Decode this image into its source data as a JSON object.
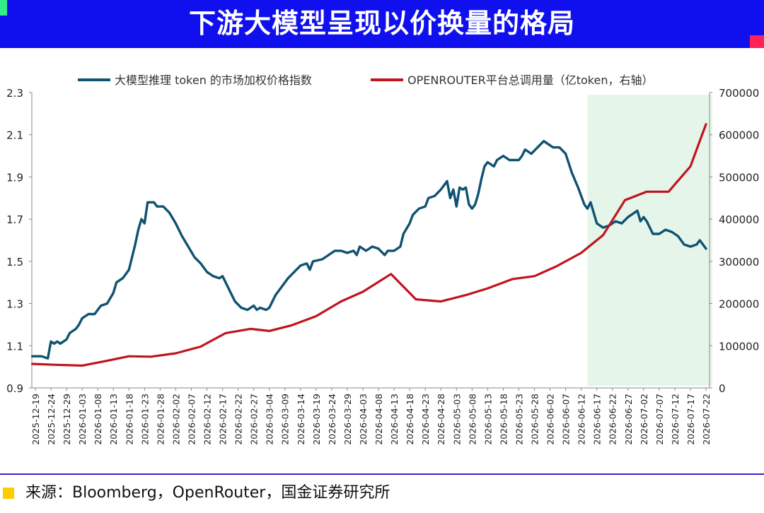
{
  "page": {
    "title": "下游大模型呈现以价换量的格局",
    "source": "来源：Bloomberg，OpenRouter，国金证券研究所",
    "colors": {
      "banner": "#1010ee",
      "accent_green": "#33ee88",
      "accent_red": "#ff2255",
      "source_marker": "#ffcc00"
    }
  },
  "chart_data": {
    "type": "line",
    "x_ticks": [
      "2025-12-19",
      "2025-12-24",
      "2025-12-29",
      "2026-01-03",
      "2026-01-08",
      "2026-01-13",
      "2026-01-18",
      "2026-01-23",
      "2026-01-28",
      "2026-02-02",
      "2026-02-07",
      "2026-02-12",
      "2026-02-17",
      "2026-02-22",
      "2026-02-27",
      "2026-03-04",
      "2026-03-09",
      "2026-03-14",
      "2026-03-19",
      "2026-03-24",
      "2026-03-29",
      "2026-04-03",
      "2026-04-08",
      "2026-04-13",
      "2026-04-18",
      "2026-04-23",
      "2026-04-28",
      "2026-05-03",
      "2026-05-08",
      "2026-05-13",
      "2026-05-18",
      "2026-05-23",
      "2026-05-28",
      "2026-06-02",
      "2026-06-07",
      "2026-06-12",
      "2026-06-17",
      "2026-06-22",
      "2026-06-27",
      "2026-07-02",
      "2026-07-07",
      "2026-07-12",
      "2026-07-17",
      "2026-07-22"
    ],
    "y_left": {
      "min": 0.9,
      "max": 2.3,
      "ticks": [
        "0.9",
        "1.1",
        "1.3",
        "1.5",
        "1.7",
        "1.9",
        "2.1",
        "2.3"
      ]
    },
    "y_right": {
      "min": 0,
      "max": 700000,
      "ticks": [
        "0",
        "100000",
        "200000",
        "300000",
        "400000",
        "500000",
        "600000",
        "700000"
      ]
    },
    "highlight": {
      "from": "2026-06-14",
      "to": "2026-07-24",
      "color": "#e5f5ea"
    },
    "series": [
      {
        "name": "大模型推理 token 的市场加权价格指数",
        "axis": "left",
        "color": "#0f5271",
        "points": [
          [
            "2025-12-18",
            1.05
          ],
          [
            "2025-12-21",
            1.05
          ],
          [
            "2025-12-23",
            1.04
          ],
          [
            "2025-12-24",
            1.12
          ],
          [
            "2025-12-25",
            1.11
          ],
          [
            "2025-12-26",
            1.12
          ],
          [
            "2025-12-27",
            1.11
          ],
          [
            "2025-12-29",
            1.13
          ],
          [
            "2025-12-30",
            1.16
          ],
          [
            "2026-01-01",
            1.18
          ],
          [
            "2026-01-02",
            1.2
          ],
          [
            "2026-01-03",
            1.23
          ],
          [
            "2026-01-05",
            1.25
          ],
          [
            "2026-01-07",
            1.25
          ],
          [
            "2026-01-08",
            1.27
          ],
          [
            "2026-01-09",
            1.29
          ],
          [
            "2026-01-11",
            1.3
          ],
          [
            "2026-01-13",
            1.35
          ],
          [
            "2026-01-14",
            1.4
          ],
          [
            "2026-01-16",
            1.42
          ],
          [
            "2026-01-18",
            1.46
          ],
          [
            "2026-01-19",
            1.52
          ],
          [
            "2026-01-20",
            1.58
          ],
          [
            "2026-01-21",
            1.65
          ],
          [
            "2026-01-22",
            1.7
          ],
          [
            "2026-01-23",
            1.68
          ],
          [
            "2026-01-24",
            1.78
          ],
          [
            "2026-01-26",
            1.78
          ],
          [
            "2026-01-27",
            1.76
          ],
          [
            "2026-01-29",
            1.76
          ],
          [
            "2026-01-31",
            1.73
          ],
          [
            "2026-02-02",
            1.68
          ],
          [
            "2026-02-04",
            1.62
          ],
          [
            "2026-02-06",
            1.57
          ],
          [
            "2026-02-08",
            1.52
          ],
          [
            "2026-02-10",
            1.49
          ],
          [
            "2026-02-12",
            1.45
          ],
          [
            "2026-02-14",
            1.43
          ],
          [
            "2026-02-16",
            1.42
          ],
          [
            "2026-02-17",
            1.43
          ],
          [
            "2026-02-19",
            1.37
          ],
          [
            "2026-02-21",
            1.31
          ],
          [
            "2026-02-23",
            1.28
          ],
          [
            "2026-02-25",
            1.27
          ],
          [
            "2026-02-27",
            1.29
          ],
          [
            "2026-02-28",
            1.27
          ],
          [
            "2026-03-01",
            1.28
          ],
          [
            "2026-03-03",
            1.27
          ],
          [
            "2026-03-04",
            1.28
          ],
          [
            "2026-03-06",
            1.34
          ],
          [
            "2026-03-08",
            1.38
          ],
          [
            "2026-03-10",
            1.42
          ],
          [
            "2026-03-12",
            1.45
          ],
          [
            "2026-03-14",
            1.48
          ],
          [
            "2026-03-16",
            1.49
          ],
          [
            "2026-03-17",
            1.46
          ],
          [
            "2026-03-18",
            1.5
          ],
          [
            "2026-03-21",
            1.51
          ],
          [
            "2026-03-23",
            1.53
          ],
          [
            "2026-03-25",
            1.55
          ],
          [
            "2026-03-27",
            1.55
          ],
          [
            "2026-03-29",
            1.54
          ],
          [
            "2026-03-31",
            1.55
          ],
          [
            "2026-04-01",
            1.53
          ],
          [
            "2026-04-02",
            1.57
          ],
          [
            "2026-04-04",
            1.55
          ],
          [
            "2026-04-06",
            1.57
          ],
          [
            "2026-04-08",
            1.56
          ],
          [
            "2026-04-10",
            1.53
          ],
          [
            "2026-04-11",
            1.55
          ],
          [
            "2026-04-13",
            1.55
          ],
          [
            "2026-04-15",
            1.57
          ],
          [
            "2026-04-16",
            1.63
          ],
          [
            "2026-04-18",
            1.68
          ],
          [
            "2026-04-19",
            1.72
          ],
          [
            "2026-04-21",
            1.75
          ],
          [
            "2026-04-23",
            1.76
          ],
          [
            "2026-04-24",
            1.8
          ],
          [
            "2026-04-26",
            1.81
          ],
          [
            "2026-04-28",
            1.84
          ],
          [
            "2026-04-30",
            1.88
          ],
          [
            "2026-05-01",
            1.8
          ],
          [
            "2026-05-02",
            1.84
          ],
          [
            "2026-05-03",
            1.76
          ],
          [
            "2026-05-04",
            1.85
          ],
          [
            "2026-05-05",
            1.84
          ],
          [
            "2026-05-06",
            1.85
          ],
          [
            "2026-05-07",
            1.77
          ],
          [
            "2026-05-08",
            1.75
          ],
          [
            "2026-05-09",
            1.77
          ],
          [
            "2026-05-10",
            1.82
          ],
          [
            "2026-05-11",
            1.89
          ],
          [
            "2026-05-12",
            1.95
          ],
          [
            "2026-05-13",
            1.97
          ],
          [
            "2026-05-15",
            1.95
          ],
          [
            "2026-05-16",
            1.98
          ],
          [
            "2026-05-18",
            2.0
          ],
          [
            "2026-05-20",
            1.98
          ],
          [
            "2026-05-23",
            1.98
          ],
          [
            "2026-05-24",
            2.0
          ],
          [
            "2026-05-25",
            2.03
          ],
          [
            "2026-05-27",
            2.01
          ],
          [
            "2026-05-29",
            2.04
          ],
          [
            "2026-05-31",
            2.07
          ],
          [
            "2026-06-01",
            2.06
          ],
          [
            "2026-06-03",
            2.04
          ],
          [
            "2026-06-05",
            2.04
          ],
          [
            "2026-06-07",
            2.01
          ],
          [
            "2026-06-09",
            1.92
          ],
          [
            "2026-06-11",
            1.85
          ],
          [
            "2026-06-13",
            1.77
          ],
          [
            "2026-06-14",
            1.75
          ],
          [
            "2026-06-15",
            1.78
          ],
          [
            "2026-06-16",
            1.73
          ],
          [
            "2026-06-17",
            1.68
          ],
          [
            "2026-06-19",
            1.66
          ],
          [
            "2026-06-21",
            1.67
          ],
          [
            "2026-06-23",
            1.69
          ],
          [
            "2026-06-25",
            1.68
          ],
          [
            "2026-06-27",
            1.71
          ],
          [
            "2026-06-29",
            1.73
          ],
          [
            "2026-06-30",
            1.74
          ],
          [
            "2026-07-01",
            1.69
          ],
          [
            "2026-07-02",
            1.71
          ],
          [
            "2026-07-03",
            1.69
          ],
          [
            "2026-07-05",
            1.63
          ],
          [
            "2026-07-07",
            1.63
          ],
          [
            "2026-07-09",
            1.65
          ],
          [
            "2026-07-11",
            1.64
          ],
          [
            "2026-07-13",
            1.62
          ],
          [
            "2026-07-15",
            1.58
          ],
          [
            "2026-07-17",
            1.57
          ],
          [
            "2026-07-19",
            1.58
          ],
          [
            "2026-07-20",
            1.6
          ],
          [
            "2026-07-22",
            1.56
          ]
        ]
      },
      {
        "name": "OPENROUTER平台总调用量（亿token，右轴）",
        "axis": "right",
        "color": "#c0141c",
        "points": [
          [
            "2025-12-18",
            57000
          ],
          [
            "2025-12-25",
            55000
          ],
          [
            "2026-01-03",
            53000
          ],
          [
            "2026-01-10",
            63000
          ],
          [
            "2026-01-18",
            75000
          ],
          [
            "2026-01-25",
            74000
          ],
          [
            "2026-02-02",
            82000
          ],
          [
            "2026-02-10",
            98000
          ],
          [
            "2026-02-18",
            130000
          ],
          [
            "2026-02-26",
            140000
          ],
          [
            "2026-03-04",
            135000
          ],
          [
            "2026-03-11",
            148000
          ],
          [
            "2026-03-19",
            170000
          ],
          [
            "2026-03-27",
            205000
          ],
          [
            "2026-04-03",
            228000
          ],
          [
            "2026-04-12",
            270000
          ],
          [
            "2026-04-20",
            210000
          ],
          [
            "2026-04-28",
            205000
          ],
          [
            "2026-05-06",
            220000
          ],
          [
            "2026-05-13",
            236000
          ],
          [
            "2026-05-21",
            258000
          ],
          [
            "2026-05-28",
            265000
          ],
          [
            "2026-06-04",
            288000
          ],
          [
            "2026-06-12",
            320000
          ],
          [
            "2026-06-19",
            362000
          ],
          [
            "2026-06-26",
            445000
          ],
          [
            "2026-07-03",
            465000
          ],
          [
            "2026-07-10",
            465000
          ],
          [
            "2026-07-17",
            525000
          ],
          [
            "2026-07-22",
            625000
          ]
        ]
      }
    ],
    "legend_position": "top"
  }
}
